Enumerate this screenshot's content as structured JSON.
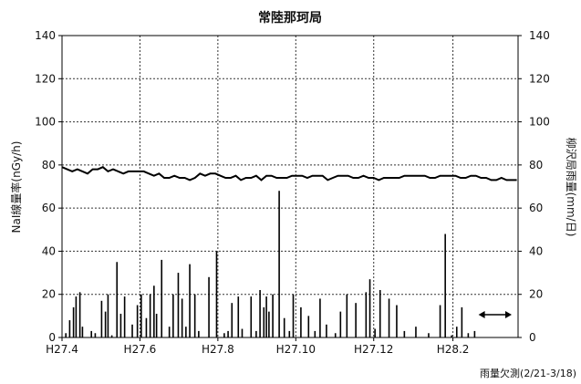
{
  "chart_data": {
    "type": "line+bar",
    "title": "常陸那珂局",
    "ylabel_left": "NaI線量率(nGy/h)",
    "ylabel_right": "柳沢局雨量(mm/日)",
    "ylim_left": [
      0,
      140
    ],
    "ylim_right": [
      0,
      140
    ],
    "yticks": [
      0,
      20,
      40,
      60,
      80,
      100,
      120,
      140
    ],
    "grid": true,
    "x_tick_labels": [
      "H27.4",
      "H27.6",
      "H27.8",
      "H27.10",
      "H27.12",
      "H28.2"
    ],
    "x_range_days": [
      0,
      357
    ],
    "x_tick_days": [
      0,
      61,
      122,
      183,
      244,
      306
    ],
    "missing_note": "雨量欠測(2/21-3/18)",
    "missing_range_days": [
      326,
      352
    ],
    "series": [
      {
        "type": "line",
        "axis": "left",
        "x_days": [
          0,
          4,
          8,
          12,
          16,
          20,
          24,
          28,
          32,
          36,
          40,
          44,
          48,
          52,
          56,
          60,
          64,
          68,
          72,
          76,
          80,
          84,
          88,
          92,
          96,
          100,
          104,
          108,
          112,
          116,
          120,
          124,
          128,
          132,
          136,
          140,
          144,
          148,
          152,
          156,
          160,
          164,
          168,
          172,
          176,
          180,
          184,
          188,
          192,
          196,
          200,
          204,
          208,
          212,
          216,
          220,
          224,
          228,
          232,
          236,
          240,
          244,
          248,
          252,
          256,
          260,
          264,
          268,
          272,
          276,
          280,
          284,
          288,
          292,
          296,
          300,
          304,
          308,
          312,
          316,
          320,
          324,
          328,
          332,
          336,
          340,
          344,
          348,
          352,
          356
        ],
        "values": [
          79,
          78,
          77,
          78,
          77,
          76,
          78,
          78,
          79,
          77,
          78,
          77,
          76,
          77,
          77,
          77,
          77,
          76,
          75,
          76,
          74,
          74,
          75,
          74,
          74,
          73,
          74,
          76,
          75,
          76,
          76,
          75,
          74,
          74,
          75,
          73,
          74,
          74,
          75,
          73,
          75,
          75,
          74,
          74,
          74,
          75,
          75,
          75,
          74,
          75,
          75,
          75,
          73,
          74,
          75,
          75,
          75,
          74,
          74,
          75,
          74,
          74,
          73,
          74,
          74,
          74,
          74,
          75,
          75,
          75,
          75,
          75,
          74,
          74,
          75,
          75,
          75,
          75,
          74,
          74,
          75,
          75,
          74,
          74,
          73,
          73,
          74,
          73,
          73,
          73
        ]
      },
      {
        "type": "bar",
        "axis": "right",
        "x_days": [
          3,
          6,
          9,
          11,
          14,
          16,
          23,
          26,
          31,
          34,
          36,
          39,
          43,
          46,
          49,
          55,
          59,
          62,
          66,
          69,
          72,
          74,
          78,
          84,
          87,
          91,
          94,
          97,
          100,
          104,
          107,
          115,
          121,
          127,
          130,
          133,
          138,
          141,
          148,
          152,
          155,
          158,
          160,
          162,
          165,
          170,
          174,
          178,
          181,
          187,
          193,
          198,
          202,
          207,
          214,
          218,
          223,
          230,
          238,
          241,
          245,
          249,
          256,
          262,
          268,
          277,
          287,
          296,
          300,
          305,
          309,
          313,
          318,
          323
        ],
        "values": [
          2,
          8,
          14,
          19,
          21,
          5,
          3,
          2,
          17,
          12,
          20,
          1,
          35,
          11,
          19,
          6,
          15,
          20,
          9,
          20,
          24,
          11,
          36,
          5,
          20,
          30,
          18,
          5,
          34,
          20,
          3,
          28,
          40,
          2,
          3,
          16,
          19,
          4,
          19,
          3,
          22,
          14,
          19,
          12,
          20,
          68,
          9,
          3,
          20,
          14,
          10,
          3,
          18,
          6,
          2,
          12,
          20,
          16,
          21,
          27,
          4,
          22,
          18,
          15,
          3,
          5,
          2,
          15,
          48,
          1,
          5,
          14,
          2,
          3
        ]
      }
    ]
  }
}
